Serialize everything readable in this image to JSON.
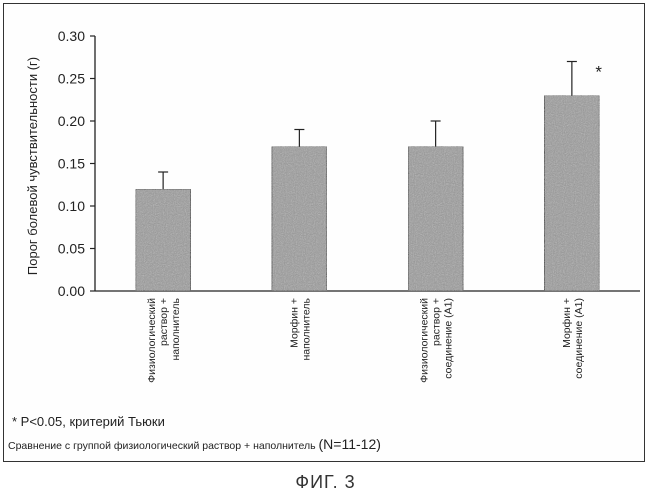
{
  "chart_data": {
    "type": "bar",
    "ylabel": "Порог болевой чувствительности (г)",
    "ylim": [
      0,
      0.3
    ],
    "yticks": [
      "0.00",
      "0.05",
      "0.10",
      "0.15",
      "0.20",
      "0.25",
      "0.30"
    ],
    "categories": [
      [
        "Физиологический",
        "раствор +",
        "наполнитель"
      ],
      [
        "Морфин +",
        "наполнитель"
      ],
      [
        "Физиологический",
        "раствор +",
        "соединение (A1)"
      ],
      [
        "Морфин +",
        "соединение (A1)"
      ]
    ],
    "values": [
      0.12,
      0.17,
      0.17,
      0.23
    ],
    "errors": [
      0.02,
      0.02,
      0.03,
      0.04
    ],
    "significance": [
      "",
      "",
      "",
      "*"
    ],
    "bar_color": "#9a9a9a",
    "grid": false
  },
  "notes": {
    "significance": "* P<0.05, критерий Тьюки",
    "comparison": "Сравнение с группой физиологический раствор + наполнитель",
    "sample_size": "(N=11-12)"
  },
  "caption": "ФИГ. 3"
}
